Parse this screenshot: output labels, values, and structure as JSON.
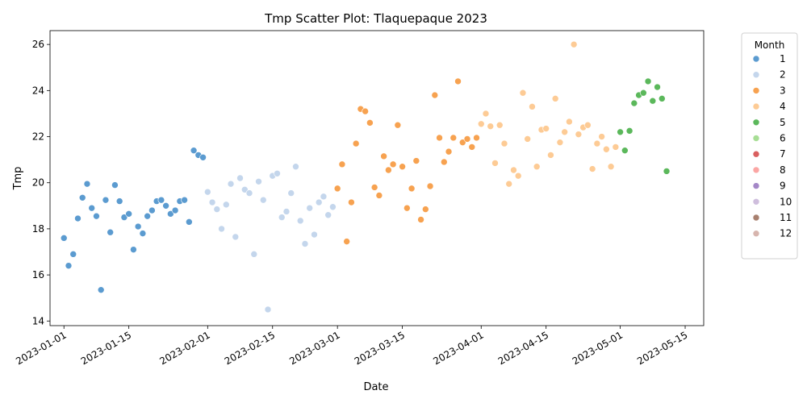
{
  "chart_data": {
    "type": "scatter",
    "title": "Tmp Scatter Plot: Tlaquepaque 2023",
    "xlabel": "Date",
    "ylabel": "Tmp",
    "x_is_date": true,
    "xlim": [
      "2022-12-29",
      "2023-05-19"
    ],
    "ylim": [
      13.8,
      26.6
    ],
    "x_ticks": [
      "2023-01-01",
      "2023-01-15",
      "2023-02-01",
      "2023-02-15",
      "2023-03-01",
      "2023-03-15",
      "2023-04-01",
      "2023-04-15",
      "2023-05-01",
      "2023-05-15"
    ],
    "y_ticks": [
      14,
      16,
      18,
      20,
      22,
      24,
      26
    ],
    "grid": false,
    "legend": {
      "title": "Month",
      "placement": "outside-right",
      "entries": [
        {
          "label": "1",
          "color": "#5b9bd0"
        },
        {
          "label": "2",
          "color": "#c4d6ec"
        },
        {
          "label": "3",
          "color": "#f7a250"
        },
        {
          "label": "4",
          "color": "#fdcb95"
        },
        {
          "label": "5",
          "color": "#5bb85b"
        },
        {
          "label": "6",
          "color": "#a7de95"
        },
        {
          "label": "7",
          "color": "#d95f5f"
        },
        {
          "label": "8",
          "color": "#fba6a4"
        },
        {
          "label": "9",
          "color": "#a487c7"
        },
        {
          "label": "10",
          "color": "#cfbedd"
        },
        {
          "label": "11",
          "color": "#a8806f"
        },
        {
          "label": "12",
          "color": "#d7b5ae"
        }
      ]
    },
    "series": [
      {
        "month": "1",
        "points": [
          [
            "2023-01-01",
            17.6
          ],
          [
            "2023-01-02",
            16.4
          ],
          [
            "2023-01-03",
            16.9
          ],
          [
            "2023-01-04",
            18.45
          ],
          [
            "2023-01-05",
            19.35
          ],
          [
            "2023-01-06",
            19.95
          ],
          [
            "2023-01-07",
            18.9
          ],
          [
            "2023-01-08",
            18.55
          ],
          [
            "2023-01-09",
            15.35
          ],
          [
            "2023-01-10",
            19.25
          ],
          [
            "2023-01-11",
            17.85
          ],
          [
            "2023-01-12",
            19.9
          ],
          [
            "2023-01-13",
            19.2
          ],
          [
            "2023-01-14",
            18.5
          ],
          [
            "2023-01-15",
            18.65
          ],
          [
            "2023-01-16",
            17.1
          ],
          [
            "2023-01-17",
            18.1
          ],
          [
            "2023-01-18",
            17.8
          ],
          [
            "2023-01-19",
            18.55
          ],
          [
            "2023-01-20",
            18.8
          ],
          [
            "2023-01-21",
            19.2
          ],
          [
            "2023-01-22",
            19.25
          ],
          [
            "2023-01-23",
            19.0
          ],
          [
            "2023-01-24",
            18.65
          ],
          [
            "2023-01-25",
            18.8
          ],
          [
            "2023-01-26",
            19.2
          ],
          [
            "2023-01-27",
            19.25
          ],
          [
            "2023-01-28",
            18.3
          ],
          [
            "2023-01-29",
            21.4
          ],
          [
            "2023-01-30",
            21.2
          ],
          [
            "2023-01-31",
            21.1
          ]
        ]
      },
      {
        "month": "2",
        "points": [
          [
            "2023-02-01",
            19.6
          ],
          [
            "2023-02-02",
            19.15
          ],
          [
            "2023-02-03",
            18.85
          ],
          [
            "2023-02-04",
            18.0
          ],
          [
            "2023-02-05",
            19.05
          ],
          [
            "2023-02-06",
            19.95
          ],
          [
            "2023-02-07",
            17.65
          ],
          [
            "2023-02-08",
            20.2
          ],
          [
            "2023-02-09",
            19.7
          ],
          [
            "2023-02-10",
            19.55
          ],
          [
            "2023-02-11",
            16.9
          ],
          [
            "2023-02-12",
            20.05
          ],
          [
            "2023-02-13",
            19.25
          ],
          [
            "2023-02-14",
            14.5
          ],
          [
            "2023-02-15",
            20.3
          ],
          [
            "2023-02-16",
            20.4
          ],
          [
            "2023-02-17",
            18.5
          ],
          [
            "2023-02-18",
            18.75
          ],
          [
            "2023-02-19",
            19.55
          ],
          [
            "2023-02-20",
            20.7
          ],
          [
            "2023-02-21",
            18.35
          ],
          [
            "2023-02-22",
            17.35
          ],
          [
            "2023-02-23",
            18.9
          ],
          [
            "2023-02-24",
            17.75
          ],
          [
            "2023-02-25",
            19.15
          ],
          [
            "2023-02-26",
            19.4
          ],
          [
            "2023-02-27",
            18.6
          ],
          [
            "2023-02-28",
            18.95
          ]
        ]
      },
      {
        "month": "3",
        "points": [
          [
            "2023-03-01",
            19.75
          ],
          [
            "2023-03-02",
            20.8
          ],
          [
            "2023-03-03",
            17.45
          ],
          [
            "2023-03-04",
            19.15
          ],
          [
            "2023-03-05",
            21.7
          ],
          [
            "2023-03-06",
            23.2
          ],
          [
            "2023-03-07",
            23.1
          ],
          [
            "2023-03-08",
            22.6
          ],
          [
            "2023-03-09",
            19.8
          ],
          [
            "2023-03-10",
            19.45
          ],
          [
            "2023-03-11",
            21.15
          ],
          [
            "2023-03-12",
            20.55
          ],
          [
            "2023-03-13",
            20.8
          ],
          [
            "2023-03-14",
            22.5
          ],
          [
            "2023-03-15",
            20.7
          ],
          [
            "2023-03-16",
            18.9
          ],
          [
            "2023-03-17",
            19.75
          ],
          [
            "2023-03-18",
            20.95
          ],
          [
            "2023-03-19",
            18.4
          ],
          [
            "2023-03-20",
            18.85
          ],
          [
            "2023-03-21",
            19.85
          ],
          [
            "2023-03-22",
            23.8
          ],
          [
            "2023-03-23",
            21.95
          ],
          [
            "2023-03-24",
            20.9
          ],
          [
            "2023-03-25",
            21.35
          ],
          [
            "2023-03-26",
            21.95
          ],
          [
            "2023-03-27",
            24.4
          ],
          [
            "2023-03-28",
            21.75
          ],
          [
            "2023-03-29",
            21.9
          ],
          [
            "2023-03-30",
            21.55
          ],
          [
            "2023-03-31",
            21.95
          ]
        ]
      },
      {
        "month": "4",
        "points": [
          [
            "2023-04-01",
            22.55
          ],
          [
            "2023-04-02",
            23.0
          ],
          [
            "2023-04-03",
            22.45
          ],
          [
            "2023-04-04",
            20.85
          ],
          [
            "2023-04-05",
            22.5
          ],
          [
            "2023-04-06",
            21.7
          ],
          [
            "2023-04-07",
            19.95
          ],
          [
            "2023-04-08",
            20.55
          ],
          [
            "2023-04-09",
            20.3
          ],
          [
            "2023-04-10",
            23.9
          ],
          [
            "2023-04-11",
            21.9
          ],
          [
            "2023-04-12",
            23.3
          ],
          [
            "2023-04-13",
            20.7
          ],
          [
            "2023-04-14",
            22.3
          ],
          [
            "2023-04-15",
            22.35
          ],
          [
            "2023-04-16",
            21.2
          ],
          [
            "2023-04-17",
            23.65
          ],
          [
            "2023-04-18",
            21.75
          ],
          [
            "2023-04-19",
            22.2
          ],
          [
            "2023-04-20",
            22.65
          ],
          [
            "2023-04-21",
            26.0
          ],
          [
            "2023-04-22",
            22.1
          ],
          [
            "2023-04-23",
            22.4
          ],
          [
            "2023-04-24",
            22.5
          ],
          [
            "2023-04-25",
            20.6
          ],
          [
            "2023-04-26",
            21.7
          ],
          [
            "2023-04-27",
            22.0
          ],
          [
            "2023-04-28",
            21.45
          ],
          [
            "2023-04-29",
            20.7
          ],
          [
            "2023-04-30",
            21.55
          ]
        ]
      },
      {
        "month": "5",
        "points": [
          [
            "2023-05-01",
            22.2
          ],
          [
            "2023-05-02",
            21.4
          ],
          [
            "2023-05-03",
            22.25
          ],
          [
            "2023-05-04",
            23.45
          ],
          [
            "2023-05-05",
            23.8
          ],
          [
            "2023-05-06",
            23.9
          ],
          [
            "2023-05-07",
            24.4
          ],
          [
            "2023-05-08",
            23.55
          ],
          [
            "2023-05-09",
            24.15
          ],
          [
            "2023-05-10",
            23.65
          ],
          [
            "2023-05-11",
            20.5
          ]
        ]
      }
    ]
  }
}
